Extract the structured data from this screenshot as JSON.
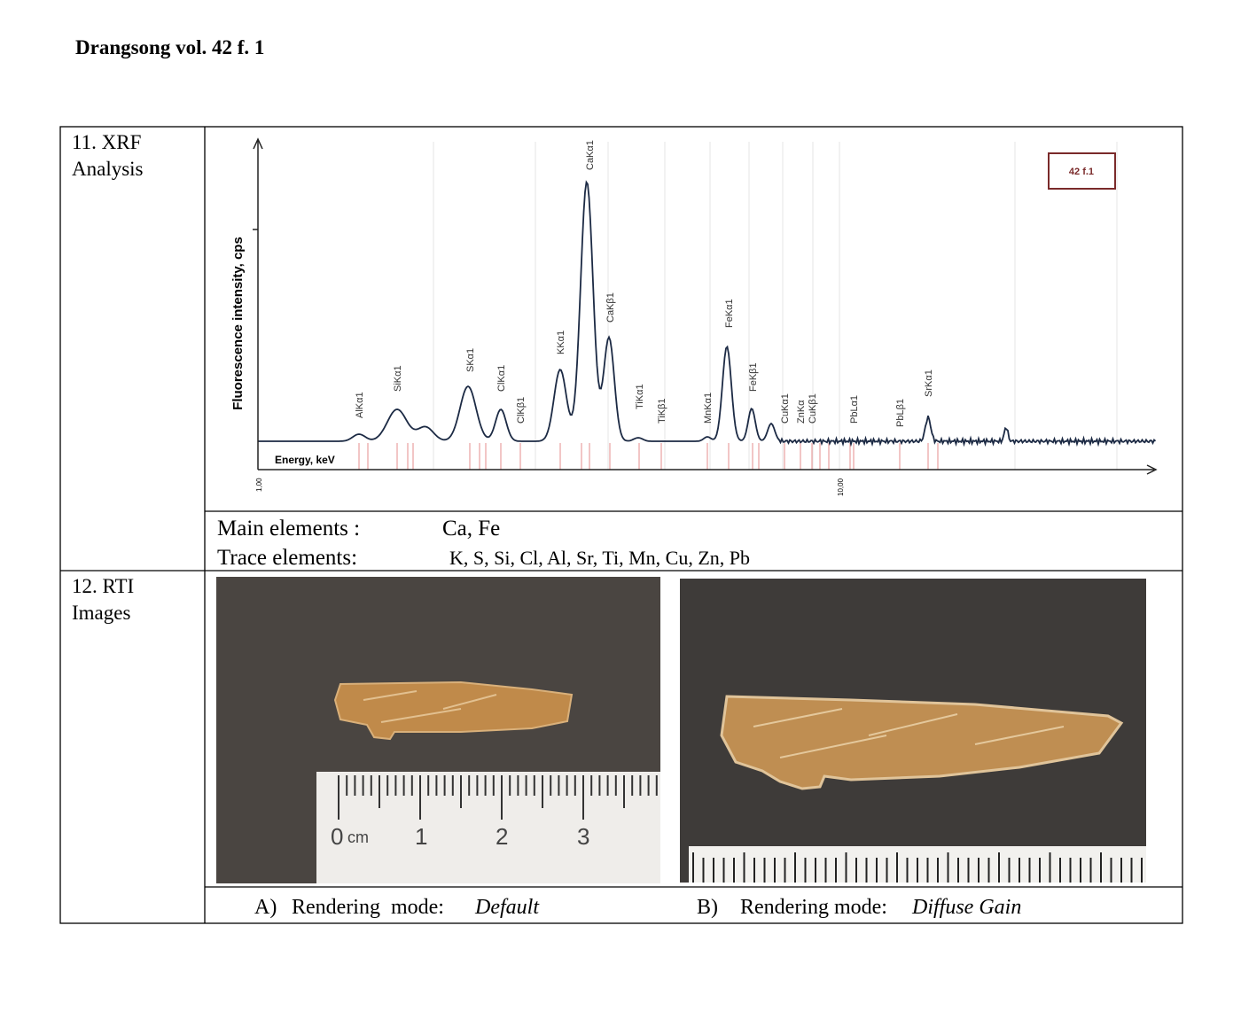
{
  "header": {
    "title": "Drangsong vol. 42 f. 1"
  },
  "xrf": {
    "row_label": [
      "11. XRF",
      "Analysis"
    ],
    "chart": {
      "y_label": "Fluorescence intensity, cps",
      "x_label": "Energy, keV",
      "x_tick_labels": [
        "1,00",
        "10,00"
      ],
      "legend": "42 f.1",
      "peak_labels": [
        "AlKα1",
        "SiKα1",
        "SKα1",
        "ClKα1",
        "ClKβ1",
        "KKα1",
        "CaKα1",
        "CaKβ1",
        "TiKα1",
        "TiKβ1",
        "MnKα1",
        "FeKα1",
        "FeKβ1",
        "CuKα1",
        "ZnKα",
        "CuKβ1",
        "PbLα1",
        "PbLβ1",
        "SrKα1"
      ]
    },
    "main_label": "Main elements :",
    "main_value": "Ca, Fe",
    "trace_label": "Trace elements:",
    "trace_value": "K, S, Si, Cl, Al, Sr, Ti, Mn, Cu, Zn, Pb"
  },
  "rti": {
    "row_label": [
      "12. RTI",
      "Images"
    ],
    "ruler": {
      "zero": "0",
      "unit": "cm",
      "marks": [
        "1",
        "2",
        "3"
      ]
    },
    "captions": [
      {
        "letter": "A)",
        "text": "Rendering  mode:",
        "mode": "Default"
      },
      {
        "letter": "B)",
        "text": "Rendering mode:",
        "mode": "Diffuse Gain"
      }
    ]
  }
}
